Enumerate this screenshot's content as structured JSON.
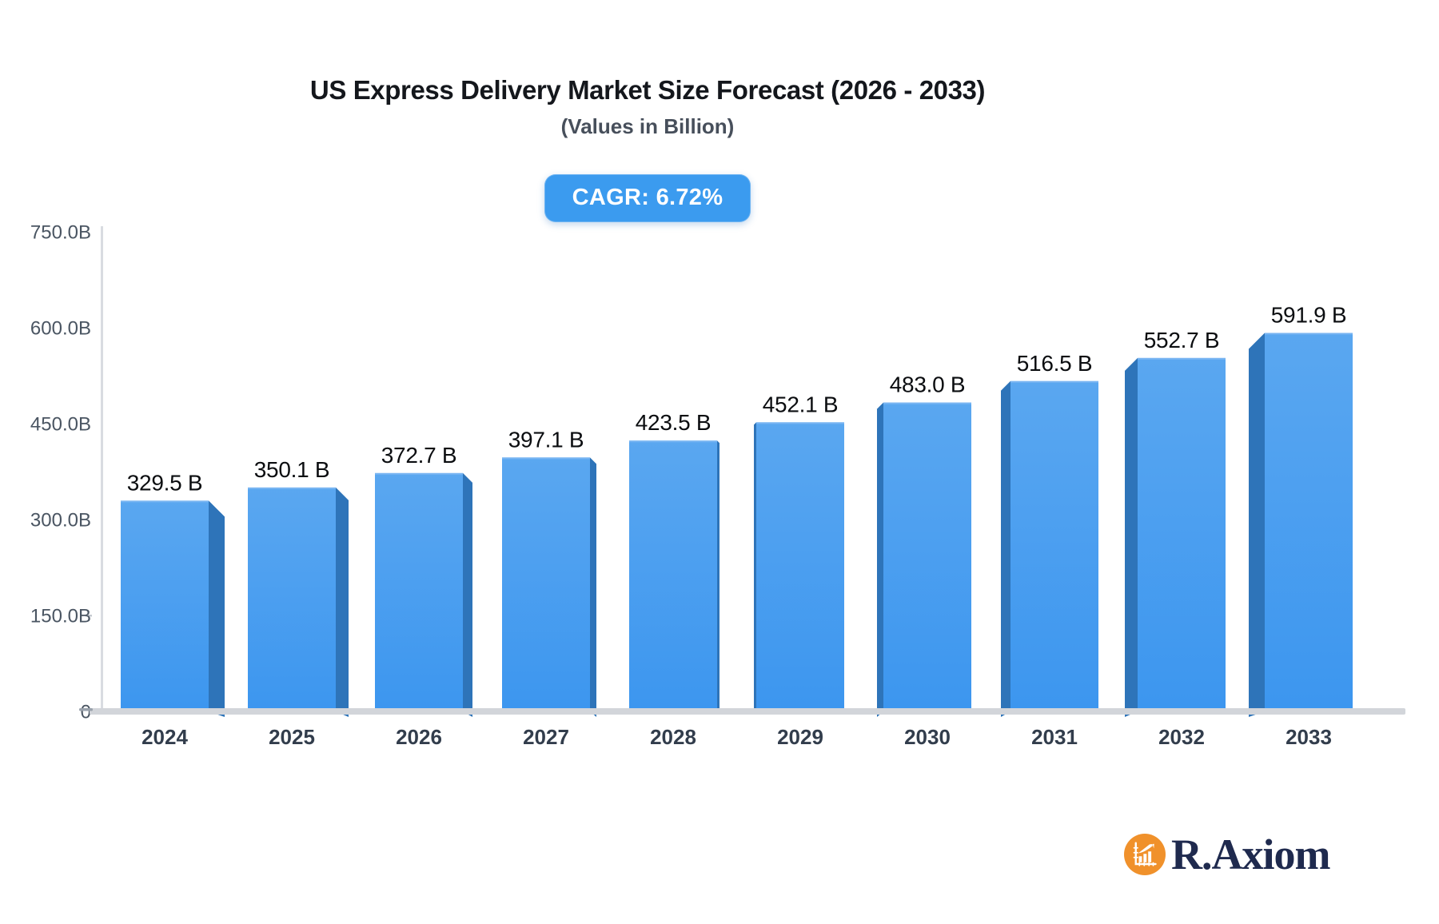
{
  "header": {
    "title": "US Express Delivery Market Size Forecast (2026 - 2033)",
    "subtitle": "(Values in Billion)",
    "cagr_badge": "CAGR: 6.72%",
    "badge_color": "#3b9bef"
  },
  "chart_data": {
    "type": "bar",
    "title": "US Express Delivery Market Size Forecast (2026 - 2033)",
    "subtitle": "(Values in Billion)",
    "annotation": "CAGR: 6.72%",
    "categories": [
      "2024",
      "2025",
      "2026",
      "2027",
      "2028",
      "2029",
      "2030",
      "2031",
      "2032",
      "2033"
    ],
    "values": [
      329.5,
      350.1,
      372.7,
      397.1,
      423.5,
      452.1,
      483.0,
      516.5,
      552.7,
      591.9
    ],
    "value_labels": [
      "329.5 B",
      "350.1 B",
      "372.7 B",
      "397.1 B",
      "423.5 B",
      "452.1 B",
      "483.0 B",
      "516.5 B",
      "552.7 B",
      "591.9 B"
    ],
    "xlabel": "",
    "ylabel": "",
    "ylim": [
      0,
      750
    ],
    "y_tick_values": [
      750,
      600,
      450,
      300,
      150,
      0
    ],
    "y_tick_labels": [
      "750.0B",
      "600.0B",
      "450.0B",
      "300.0B",
      "150.0B",
      "0"
    ],
    "legend": null,
    "grid": false,
    "colors": {
      "bar_top": "#5aa7f0",
      "bar_bottom": "#3c96ef",
      "bar_side": "#2e74b9",
      "bar_top_highlight": "#7db7f3",
      "value_label": "#0b0d10",
      "x_tick_label": "#323d4c",
      "y_tick_label": "#4a5562",
      "axis_line": "#d9dce1",
      "baseline_band": "#d2d5da",
      "zero_tick": "#9aa2ac"
    }
  },
  "branding": {
    "logo_text": "R.Axiom",
    "logo_icon": "bar-chart-growth-icon",
    "logo_circle_color": "#f0912b",
    "logo_text_color": "#1f2a4e"
  }
}
